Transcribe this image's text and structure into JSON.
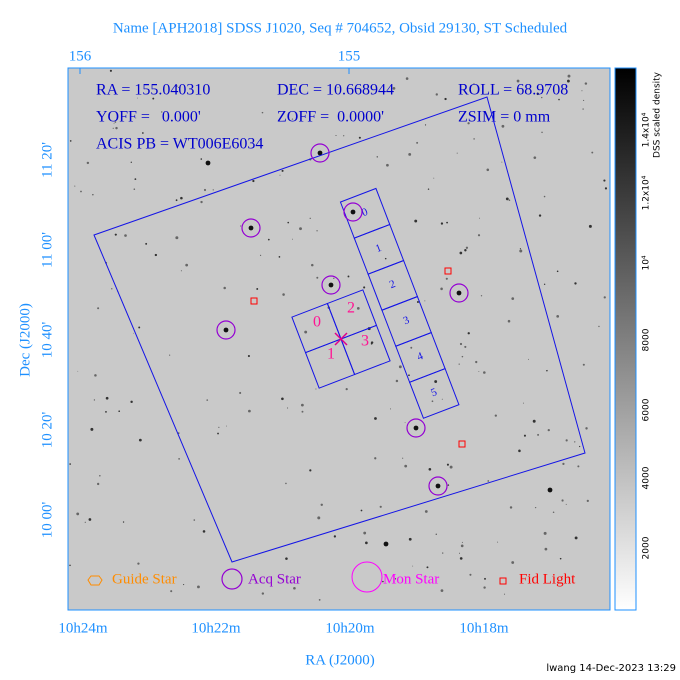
{
  "title": "Name [APH2018] SDSS J1020, Seq # 704652, Obsid 29130, ST Scheduled",
  "info": [
    "RA = 155.040310",
    "DEC = 10.668944",
    "ROLL = 68.9708",
    "YOFF =   0.000'",
    "ZOFF =  0.0000'",
    "ZSIM = 0 mm",
    "ACIS PB = WT006E6034"
  ],
  "top_axis": {
    "ticks": [
      "156",
      "155"
    ]
  },
  "x_axis": {
    "label": "RA (J2000)",
    "ticks": [
      "10h24m",
      "10h22m",
      "10h20m",
      "10h18m"
    ]
  },
  "y_axis": {
    "label": "Dec (J2000)",
    "ticks": [
      "11 20'",
      "11 00'",
      "10 40'",
      "10 20'",
      "10 00'"
    ]
  },
  "colorbar": {
    "label": "DSS scaled density",
    "ticks": [
      "2000",
      "4000",
      "6000",
      "8000",
      "10⁴",
      "1.2x10⁴",
      "1.4x10⁴"
    ]
  },
  "acis_s_chips": [
    "0",
    "1",
    "2",
    "3",
    "4",
    "5"
  ],
  "acis_i_chips": [
    "0",
    "2",
    "1",
    "3"
  ],
  "legend": [
    "Guide Star",
    "Acq Star",
    "Mon Star",
    "Fid Light"
  ],
  "footer": "lwang 14-Dec-2023 13:29"
}
